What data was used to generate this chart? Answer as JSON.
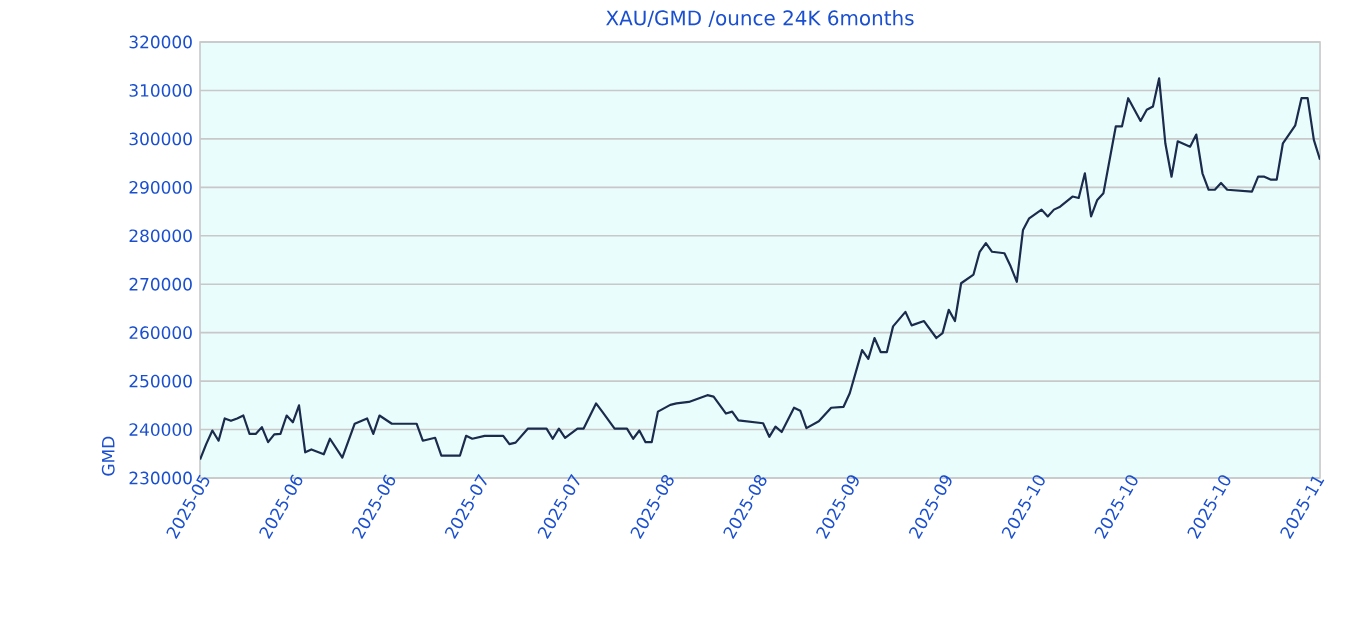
{
  "chart_data": {
    "type": "line",
    "title": "XAU/GMD /ounce 24K 6months",
    "ylabel": "GMD",
    "x": [
      "2025-05-19",
      "2025-05-20",
      "2025-05-21",
      "2025-05-22",
      "2025-05-23",
      "2025-05-24",
      "2025-05-25",
      "2025-05-26",
      "2025-05-27",
      "2025-05-28",
      "2025-05-29",
      "2025-05-30",
      "2025-05-31",
      "2025-06-01",
      "2025-06-02",
      "2025-06-03",
      "2025-06-04",
      "2025-06-05",
      "2025-06-06",
      "2025-06-08",
      "2025-06-09",
      "2025-06-11",
      "2025-06-13",
      "2025-06-15",
      "2025-06-16",
      "2025-06-17",
      "2025-06-19",
      "2025-06-23",
      "2025-06-24",
      "2025-06-26",
      "2025-06-27",
      "2025-06-30",
      "2025-07-01",
      "2025-07-02",
      "2025-07-04",
      "2025-07-07",
      "2025-07-08",
      "2025-07-09",
      "2025-07-11",
      "2025-07-14",
      "2025-07-15",
      "2025-07-16",
      "2025-07-17",
      "2025-07-19",
      "2025-07-20",
      "2025-07-22",
      "2025-07-23",
      "2025-07-25",
      "2025-07-27",
      "2025-07-28",
      "2025-07-29",
      "2025-07-30",
      "2025-07-31",
      "2025-08-01",
      "2025-08-03",
      "2025-08-04",
      "2025-08-06",
      "2025-08-09",
      "2025-08-10",
      "2025-08-12",
      "2025-08-13",
      "2025-08-14",
      "2025-08-18",
      "2025-08-19",
      "2025-08-20",
      "2025-08-21",
      "2025-08-23",
      "2025-08-24",
      "2025-08-25",
      "2025-08-27",
      "2025-08-29",
      "2025-08-31",
      "2025-09-01",
      "2025-09-03",
      "2025-09-04",
      "2025-09-05",
      "2025-09-06",
      "2025-09-07",
      "2025-09-08",
      "2025-09-10",
      "2025-09-11",
      "2025-09-13",
      "2025-09-15",
      "2025-09-16",
      "2025-09-17",
      "2025-09-18",
      "2025-09-19",
      "2025-09-21",
      "2025-09-22",
      "2025-09-23",
      "2025-09-24",
      "2025-09-26",
      "2025-09-27",
      "2025-09-28",
      "2025-09-29",
      "2025-09-30",
      "2025-10-02",
      "2025-10-03",
      "2025-10-04",
      "2025-10-05",
      "2025-10-07",
      "2025-10-08",
      "2025-10-09",
      "2025-10-10",
      "2025-10-11",
      "2025-10-12",
      "2025-10-14",
      "2025-10-15",
      "2025-10-16",
      "2025-10-18",
      "2025-10-19",
      "2025-10-20",
      "2025-10-21",
      "2025-10-22",
      "2025-10-23",
      "2025-10-24",
      "2025-10-26",
      "2025-10-27",
      "2025-10-28",
      "2025-10-29",
      "2025-10-30",
      "2025-10-31",
      "2025-11-01",
      "2025-11-05",
      "2025-11-06",
      "2025-11-07",
      "2025-11-08",
      "2025-11-09",
      "2025-11-10",
      "2025-11-12",
      "2025-11-13",
      "2025-11-14",
      "2025-11-15",
      "2025-11-16"
    ],
    "series": [
      {
        "color": "#1a2b4c",
        "values": [
          233800,
          237000,
          239800,
          237700,
          242300,
          241800,
          242300,
          242900,
          239100,
          239100,
          240500,
          237400,
          239000,
          239100,
          242900,
          241500,
          245000,
          235300,
          235900,
          234900,
          238100,
          234200,
          241200,
          242300,
          239100,
          242900,
          241200,
          241200,
          237700,
          238300,
          234600,
          234600,
          238700,
          238100,
          238700,
          238700,
          237000,
          237300,
          240200,
          240200,
          238100,
          240200,
          238300,
          240200,
          240200,
          245400,
          243700,
          240200,
          240200,
          238100,
          239800,
          237400,
          237400,
          243700,
          245100,
          245400,
          245700,
          247100,
          246800,
          243300,
          243700,
          241900,
          241300,
          238500,
          240600,
          239500,
          244500,
          243900,
          240300,
          241700,
          244500,
          244700,
          247500,
          256400,
          254600,
          258900,
          256000,
          256000,
          261300,
          264300,
          261500,
          262400,
          258900,
          259900,
          264700,
          262400,
          270200,
          272000,
          276700,
          278500,
          276700,
          276400,
          273700,
          270500,
          281200,
          283600,
          285400,
          284000,
          285400,
          286000,
          288100,
          287800,
          292900,
          284000,
          287400,
          288800,
          302600,
          302600,
          308400,
          303700,
          306000,
          306700,
          312500,
          299100,
          292200,
          299500,
          298400,
          300900,
          292900,
          289500,
          289500,
          290900,
          289500,
          289100,
          292200,
          292200,
          291600,
          291600,
          299100,
          302800,
          308400,
          308400,
          299800,
          295700
        ]
      }
    ],
    "xlim": [
      "2025-05-19",
      "2025-11-16"
    ],
    "xticks": [
      {
        "value": "2025-05-19",
        "label": "2025-05"
      },
      {
        "value": "2025-06-03",
        "label": "2025-06"
      },
      {
        "value": "2025-06-18",
        "label": "2025-06"
      },
      {
        "value": "2025-07-03",
        "label": "2025-07"
      },
      {
        "value": "2025-07-18",
        "label": "2025-07"
      },
      {
        "value": "2025-08-02",
        "label": "2025-08"
      },
      {
        "value": "2025-08-17",
        "label": "2025-08"
      },
      {
        "value": "2025-09-01",
        "label": "2025-09"
      },
      {
        "value": "2025-09-16",
        "label": "2025-09"
      },
      {
        "value": "2025-10-01",
        "label": "2025-10"
      },
      {
        "value": "2025-10-16",
        "label": "2025-10"
      },
      {
        "value": "2025-10-31",
        "label": "2025-10"
      },
      {
        "value": "2025-11-15",
        "label": "2025-11"
      }
    ],
    "ylim": [
      230000,
      320000
    ],
    "yticks": [
      230000,
      240000,
      250000,
      260000,
      270000,
      280000,
      290000,
      300000,
      310000,
      320000
    ],
    "grid": "y",
    "marker": "none",
    "line_style": "solid"
  }
}
